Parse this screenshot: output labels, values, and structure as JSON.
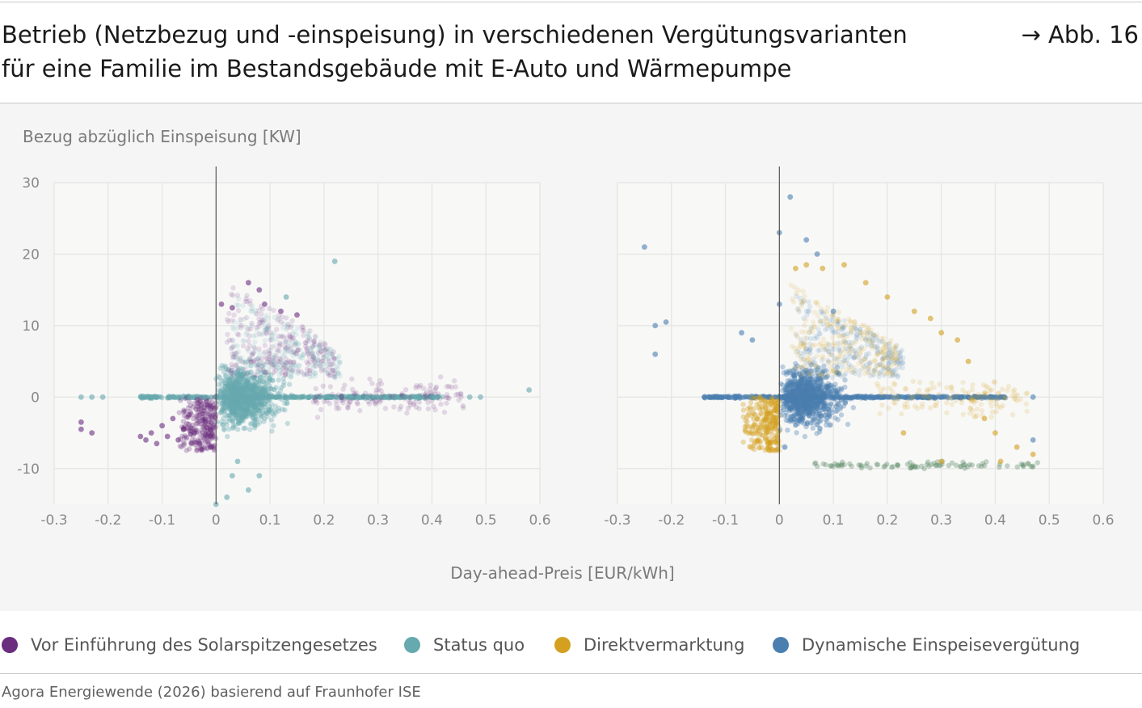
{
  "header": {
    "title_line1": "Betrieb (Netzbezug und -einspeisung) in verschiedenen Vergütungsvarianten",
    "title_line2": "für eine Familie im Bestandsgebäude mit E-Auto und Wärmepumpe",
    "figure_ref": "→ Abb. 16"
  },
  "source": "Agora Energiewende (2026) basierend auf Fraunhofer ISE",
  "legend": [
    {
      "label": "Vor Einführung des Solarspitzengesetzes",
      "color": "#6b2d7e"
    },
    {
      "label": "Status quo",
      "color": "#66a9ae"
    },
    {
      "label": "Direktvermarktung",
      "color": "#d4a020"
    },
    {
      "label": "Dynamische Einspeisevergütung",
      "color": "#4a7fb0"
    }
  ],
  "chart_data": [
    {
      "type": "scatter",
      "ylabel": "Bezug abzüglich Einspeisung [KW]",
      "xlabel": "Day-ahead-Preis [EUR/kWh]",
      "xlim": [
        -0.3,
        0.6
      ],
      "ylim": [
        -15,
        30
      ],
      "xticks": [
        "-0.3",
        "-0.2",
        "-0.1",
        "0",
        "0.1",
        "0.2",
        "0.3",
        "0.4",
        "0.5",
        "0.6"
      ],
      "yticks": [
        "30",
        "20",
        "10",
        "0",
        "-10"
      ],
      "grid": true,
      "series": [
        {
          "name": "Vor Einführung des Solarspitzengesetzes",
          "color": "#6b2d7e",
          "points": [
            [
              -0.25,
              -3.5
            ],
            [
              -0.25,
              -4.5
            ],
            [
              -0.23,
              -5
            ],
            [
              -0.14,
              -5.5
            ],
            [
              -0.13,
              -6
            ],
            [
              -0.12,
              -5
            ],
            [
              -0.11,
              -6.5
            ],
            [
              -0.1,
              -4
            ],
            [
              -0.09,
              -5.5
            ],
            [
              -0.08,
              -3
            ],
            [
              -0.07,
              -6
            ],
            [
              -0.06,
              -4.5
            ],
            [
              -0.05,
              -2.5
            ],
            [
              -0.04,
              -5
            ],
            [
              -0.03,
              -6.5
            ],
            [
              -0.02,
              -3.5
            ],
            [
              -0.01,
              -5.5
            ],
            [
              -0.01,
              -7
            ],
            [
              0.01,
              13
            ],
            [
              0.03,
              12.5
            ],
            [
              0.06,
              16
            ],
            [
              0.08,
              15
            ],
            [
              0.09,
              13
            ],
            [
              0.12,
              12
            ],
            [
              0.15,
              11.5
            ]
          ]
        },
        {
          "name": "Status quo",
          "color": "#66a9ae",
          "points": [
            [
              -0.25,
              0
            ],
            [
              -0.23,
              0
            ],
            [
              -0.21,
              0
            ],
            [
              -0.13,
              0
            ],
            [
              -0.11,
              0
            ],
            [
              -0.08,
              0
            ],
            [
              -0.05,
              0
            ],
            [
              -0.02,
              0
            ],
            [
              0,
              -15
            ],
            [
              0.02,
              -14
            ],
            [
              0.03,
              -11
            ],
            [
              0.04,
              -9
            ],
            [
              0.06,
              -13
            ],
            [
              0.08,
              -11
            ],
            [
              0.13,
              14
            ],
            [
              0.22,
              19
            ],
            [
              0.25,
              0
            ],
            [
              0.28,
              0
            ],
            [
              0.3,
              0
            ],
            [
              0.33,
              0
            ],
            [
              0.35,
              0
            ],
            [
              0.38,
              0
            ],
            [
              0.4,
              0
            ],
            [
              0.41,
              0
            ],
            [
              0.47,
              0
            ],
            [
              0.58,
              1
            ],
            [
              0.49,
              0
            ]
          ]
        }
      ]
    },
    {
      "type": "scatter",
      "xlabel": "Day-ahead-Preis [EUR/kWh]",
      "xlim": [
        -0.3,
        0.6
      ],
      "ylim": [
        -15,
        30
      ],
      "xticks": [
        "-0.3",
        "-0.2",
        "-0.1",
        "0",
        "0.1",
        "0.2",
        "0.3",
        "0.4",
        "0.5",
        "0.6"
      ],
      "grid": true,
      "series": [
        {
          "name": "Direktvermarktung",
          "color": "#d4a020",
          "points": [
            [
              0.03,
              18
            ],
            [
              0.05,
              18.5
            ],
            [
              0.08,
              18
            ],
            [
              0.12,
              18.5
            ],
            [
              0.16,
              16
            ],
            [
              0.2,
              14
            ],
            [
              0.25,
              12
            ],
            [
              0.28,
              11
            ],
            [
              0.3,
              9
            ],
            [
              0.33,
              8
            ],
            [
              0.35,
              5
            ],
            [
              0.38,
              -3
            ],
            [
              0.4,
              -5
            ],
            [
              0.44,
              -7
            ],
            [
              0.47,
              -8
            ],
            [
              0.41,
              -9
            ],
            [
              0.23,
              -5
            ],
            [
              0.3,
              -9
            ]
          ]
        },
        {
          "name": "Dynamische Einspeisevergütung",
          "color": "#4a7fb0",
          "points": [
            [
              -0.25,
              21
            ],
            [
              -0.23,
              10
            ],
            [
              -0.23,
              6
            ],
            [
              -0.21,
              10.5
            ],
            [
              -0.13,
              0
            ],
            [
              -0.11,
              0
            ],
            [
              -0.08,
              0
            ],
            [
              -0.07,
              9
            ],
            [
              -0.05,
              8
            ],
            [
              -0.02,
              0
            ],
            [
              0,
              23
            ],
            [
              0,
              13
            ],
            [
              0,
              0
            ],
            [
              0.01,
              -7
            ],
            [
              0.02,
              28
            ],
            [
              0.05,
              22
            ],
            [
              0.07,
              20
            ],
            [
              0.1,
              12
            ],
            [
              0.2,
              0
            ],
            [
              0.3,
              0
            ],
            [
              0.41,
              0
            ],
            [
              0.47,
              0
            ],
            [
              0.47,
              -6
            ]
          ]
        }
      ]
    }
  ]
}
